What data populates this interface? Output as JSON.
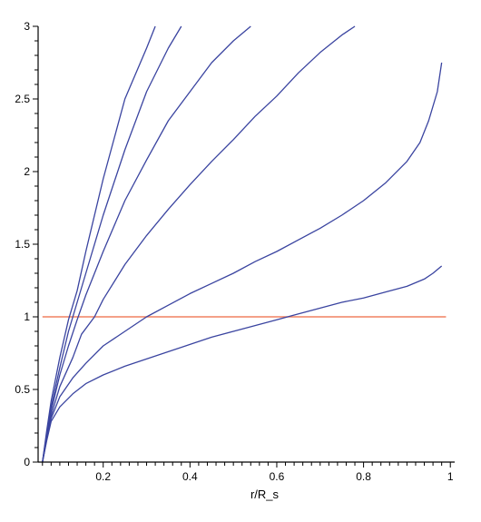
{
  "chart_data": {
    "type": "line",
    "title": "",
    "xlabel": "r/R_s",
    "ylabel": "",
    "xlim": [
      0.05,
      1.01
    ],
    "ylim": [
      0,
      3
    ],
    "grid": false,
    "x_ticks": [
      0.2,
      0.4,
      0.6,
      0.8,
      1
    ],
    "x_tick_labels": [
      "0.2",
      "0.4",
      "0.6",
      "0.8",
      "1"
    ],
    "y_ticks": [
      0,
      0.5,
      1,
      1.5,
      2,
      2.5,
      3
    ],
    "y_tick_labels": [
      "0",
      "0.5",
      "1",
      "1.5",
      "2",
      "2.5",
      "3"
    ],
    "reference_line": {
      "y": 1,
      "x_start": 0.06,
      "x_end": 0.99,
      "color": "#f08060"
    },
    "series_color": "#3a44a0",
    "series": [
      {
        "points": [
          [
            0.06,
            0
          ],
          [
            0.07,
            0.15
          ],
          [
            0.08,
            0.28
          ],
          [
            0.1,
            0.38
          ],
          [
            0.13,
            0.47
          ],
          [
            0.16,
            0.54
          ],
          [
            0.2,
            0.6
          ],
          [
            0.25,
            0.66
          ],
          [
            0.3,
            0.71
          ],
          [
            0.35,
            0.76
          ],
          [
            0.4,
            0.81
          ],
          [
            0.45,
            0.86
          ],
          [
            0.5,
            0.9
          ],
          [
            0.55,
            0.94
          ],
          [
            0.6,
            0.98
          ],
          [
            0.65,
            1.02
          ],
          [
            0.7,
            1.06
          ],
          [
            0.75,
            1.1
          ],
          [
            0.8,
            1.13
          ],
          [
            0.85,
            1.17
          ],
          [
            0.9,
            1.21
          ],
          [
            0.94,
            1.26
          ],
          [
            0.96,
            1.3
          ],
          [
            0.98,
            1.35
          ]
        ]
      },
      {
        "points": [
          [
            0.06,
            0
          ],
          [
            0.07,
            0.16
          ],
          [
            0.08,
            0.3
          ],
          [
            0.1,
            0.45
          ],
          [
            0.13,
            0.58
          ],
          [
            0.16,
            0.68
          ],
          [
            0.2,
            0.8
          ],
          [
            0.25,
            0.9
          ],
          [
            0.3,
            1.0
          ],
          [
            0.35,
            1.08
          ],
          [
            0.4,
            1.16
          ],
          [
            0.45,
            1.23
          ],
          [
            0.5,
            1.3
          ],
          [
            0.55,
            1.38
          ],
          [
            0.6,
            1.45
          ],
          [
            0.65,
            1.53
          ],
          [
            0.7,
            1.61
          ],
          [
            0.75,
            1.7
          ],
          [
            0.8,
            1.8
          ],
          [
            0.85,
            1.92
          ],
          [
            0.9,
            2.07
          ],
          [
            0.93,
            2.2
          ],
          [
            0.95,
            2.35
          ],
          [
            0.97,
            2.55
          ],
          [
            0.98,
            2.75
          ]
        ]
      },
      {
        "points": [
          [
            0.06,
            0
          ],
          [
            0.07,
            0.17
          ],
          [
            0.08,
            0.32
          ],
          [
            0.1,
            0.52
          ],
          [
            0.13,
            0.72
          ],
          [
            0.15,
            0.88
          ],
          [
            0.18,
            1.0
          ],
          [
            0.2,
            1.12
          ],
          [
            0.25,
            1.36
          ],
          [
            0.3,
            1.56
          ],
          [
            0.35,
            1.74
          ],
          [
            0.4,
            1.91
          ],
          [
            0.45,
            2.07
          ],
          [
            0.5,
            2.22
          ],
          [
            0.55,
            2.38
          ],
          [
            0.6,
            2.52
          ],
          [
            0.65,
            2.68
          ],
          [
            0.7,
            2.82
          ],
          [
            0.75,
            2.94
          ],
          [
            0.78,
            3.0
          ]
        ]
      },
      {
        "points": [
          [
            0.06,
            0
          ],
          [
            0.07,
            0.18
          ],
          [
            0.08,
            0.35
          ],
          [
            0.1,
            0.6
          ],
          [
            0.12,
            0.8
          ],
          [
            0.14,
            0.98
          ],
          [
            0.16,
            1.15
          ],
          [
            0.2,
            1.45
          ],
          [
            0.25,
            1.8
          ],
          [
            0.3,
            2.08
          ],
          [
            0.35,
            2.35
          ],
          [
            0.4,
            2.55
          ],
          [
            0.45,
            2.75
          ],
          [
            0.5,
            2.9
          ],
          [
            0.54,
            3.0
          ]
        ]
      },
      {
        "points": [
          [
            0.06,
            0
          ],
          [
            0.07,
            0.2
          ],
          [
            0.08,
            0.38
          ],
          [
            0.1,
            0.65
          ],
          [
            0.12,
            0.9
          ],
          [
            0.14,
            1.1
          ],
          [
            0.16,
            1.3
          ],
          [
            0.2,
            1.7
          ],
          [
            0.25,
            2.15
          ],
          [
            0.3,
            2.55
          ],
          [
            0.35,
            2.85
          ],
          [
            0.38,
            3.0
          ]
        ]
      },
      {
        "points": [
          [
            0.06,
            0
          ],
          [
            0.07,
            0.22
          ],
          [
            0.08,
            0.42
          ],
          [
            0.1,
            0.72
          ],
          [
            0.12,
            0.98
          ],
          [
            0.14,
            1.18
          ],
          [
            0.16,
            1.45
          ],
          [
            0.2,
            1.95
          ],
          [
            0.25,
            2.5
          ],
          [
            0.3,
            2.85
          ],
          [
            0.32,
            3.0
          ]
        ]
      }
    ]
  }
}
